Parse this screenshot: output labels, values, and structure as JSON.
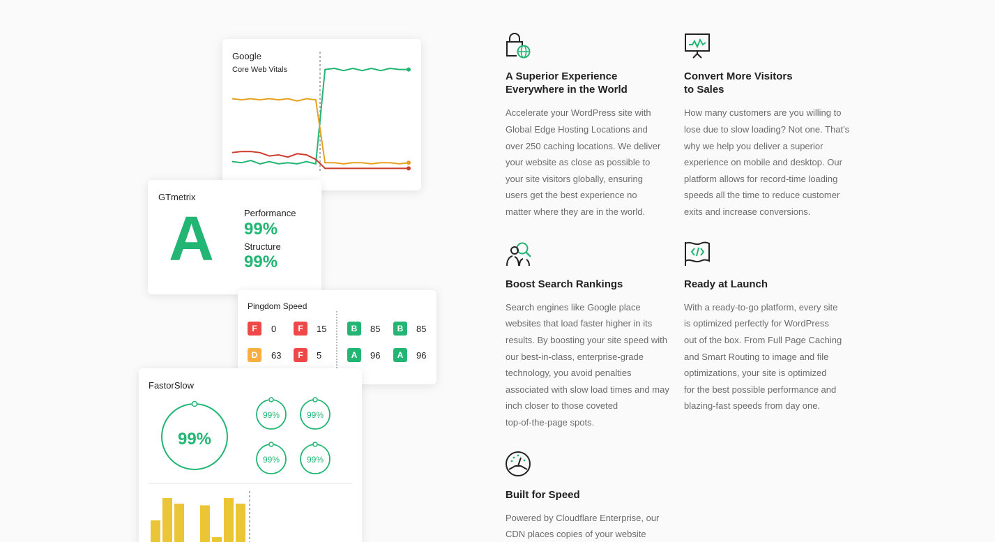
{
  "colors": {
    "green": "#22b573",
    "orange": "#e8a020",
    "red": "#cc3b2c",
    "badge_red": "#ef4848",
    "badge_yellow": "#f7b040",
    "bar_yellow": "#eac535"
  },
  "google": {
    "title": "Google",
    "subtitle": "Core Web Vitals",
    "series": [
      {
        "name": "green",
        "values": [
          0.12,
          0.11,
          0.13,
          0.1,
          0.12,
          0.1,
          0.11,
          0.1,
          0.12,
          0.1,
          0.94,
          0.95,
          0.93,
          0.95,
          0.93,
          0.95,
          0.93,
          0.95,
          0.94,
          0.94
        ]
      },
      {
        "name": "orange",
        "values": [
          0.68,
          0.67,
          0.68,
          0.67,
          0.68,
          0.67,
          0.68,
          0.66,
          0.68,
          0.67,
          0.11,
          0.11,
          0.1,
          0.11,
          0.11,
          0.1,
          0.11,
          0.11,
          0.1,
          0.11
        ]
      },
      {
        "name": "red",
        "values": [
          0.2,
          0.21,
          0.21,
          0.2,
          0.17,
          0.18,
          0.16,
          0.19,
          0.18,
          0.14,
          0.06,
          0.06,
          0.06,
          0.06,
          0.06,
          0.06,
          0.06,
          0.06,
          0.06,
          0.06
        ]
      }
    ]
  },
  "gtmetrix": {
    "title": "GTmetrix",
    "grade": "A",
    "performance_label": "Performance",
    "performance_value": "99%",
    "structure_label": "Structure",
    "structure_value": "99%"
  },
  "pingdom": {
    "title": "Pingdom Speed",
    "left": [
      {
        "grade": "F",
        "value": "0",
        "color": "badge_red"
      },
      {
        "grade": "F",
        "value": "15",
        "color": "badge_red"
      },
      {
        "grade": "D",
        "value": "63",
        "color": "badge_yellow"
      },
      {
        "grade": "F",
        "value": "5",
        "color": "badge_red"
      }
    ],
    "right": [
      {
        "grade": "B",
        "value": "85",
        "color": "green"
      },
      {
        "grade": "B",
        "value": "85",
        "color": "green"
      },
      {
        "grade": "A",
        "value": "96",
        "color": "green"
      },
      {
        "grade": "A",
        "value": "96",
        "color": "green"
      }
    ]
  },
  "fastorslow": {
    "title": "FastorSlow",
    "main_score": "99%",
    "small_scores": [
      "99%",
      "99%",
      "99%",
      "99%"
    ],
    "bars_before": [
      0.55,
      0.95,
      0.85
    ],
    "bars_after": [
      0.82,
      0.25,
      0.95,
      0.85
    ]
  },
  "features": [
    {
      "icon": "lock-globe-icon",
      "title_lines": [
        "A Superior Experience",
        "Everywhere in the World"
      ],
      "desc_lines": [
        "Accelerate your WordPress site with",
        "Global Edge Hosting Locations and",
        "over 250 caching locations. We deliver",
        "your website as close as possible to",
        "your site visitors globally, ensuring",
        "users get the best experience no",
        "matter where they are in the world."
      ]
    },
    {
      "icon": "presentation-chart-icon",
      "title_lines": [
        "Convert More Visitors",
        "to Sales"
      ],
      "desc_lines": [
        "How many customers are you willing to",
        "lose due to slow loading? Not one. That's",
        "why we help you deliver a superior",
        "experience on mobile and desktop. Our",
        "platform allows for record-time loading",
        "speeds all the time to reduce customer",
        "exits and increase conversions."
      ]
    },
    {
      "icon": "people-search-icon",
      "title_lines": [
        "Boost Search Rankings"
      ],
      "desc_lines": [
        "Search engines like Google place",
        "websites that load faster higher in its",
        "results. By boosting your site speed with",
        "our best-in-class, enterprise-grade",
        "technology, you avoid penalties",
        "associated with slow load times and may",
        "inch closer to those coveted",
        "top-of-the-page spots."
      ]
    },
    {
      "icon": "code-flag-icon",
      "title_lines": [
        "Ready at Launch"
      ],
      "desc_lines": [
        "With a ready-to-go platform, every site",
        "is optimized perfectly for WordPress",
        "out of the box. From Full Page Caching",
        "and Smart Routing to image and file",
        "optimizations, your site is optimized",
        "for the best possible performance and",
        "blazing-fast speeds from day one."
      ]
    },
    {
      "icon": "speedometer-icon",
      "title_lines": [
        "Built for Speed"
      ],
      "desc_lines": [
        "Powered by Cloudflare Enterprise, our",
        "CDN places copies of your website"
      ]
    }
  ]
}
